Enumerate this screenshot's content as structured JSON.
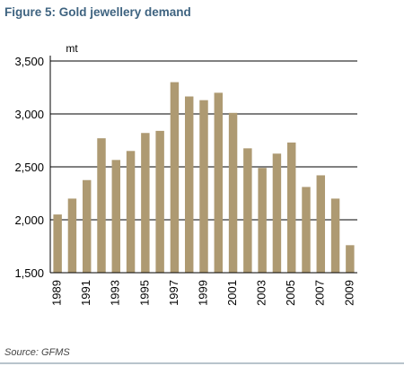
{
  "figure": {
    "title": "Figure 5: Gold jewellery demand",
    "source": "Source: GFMS"
  },
  "colors": {
    "title": "#3e6380",
    "bar": "#ae9a72",
    "grid": "#000000",
    "axis": "#000000"
  },
  "chart_data": {
    "type": "bar",
    "title": "Figure 5: Gold jewellery demand",
    "unit_label": "mt",
    "xlabel": "",
    "ylabel": "",
    "categories": [
      "1989",
      "1990",
      "1991",
      "1992",
      "1993",
      "1994",
      "1995",
      "1996",
      "1997",
      "1998",
      "1999",
      "2000",
      "2001",
      "2002",
      "2003",
      "2004",
      "2005",
      "2006",
      "2007",
      "2008",
      "2009"
    ],
    "x_tick_labels": [
      "1989",
      "1991",
      "1993",
      "1995",
      "1997",
      "1999",
      "2001",
      "2003",
      "2005",
      "2007",
      "2009"
    ],
    "values": [
      2050,
      2200,
      2375,
      2770,
      2565,
      2650,
      2820,
      2840,
      3300,
      3165,
      3130,
      3200,
      3010,
      2675,
      2490,
      2625,
      2730,
      2310,
      2420,
      2200,
      1760
    ],
    "y_tick_labels": [
      "1,500",
      "2,000",
      "2,500",
      "3,000",
      "3,500"
    ],
    "y_ticks": [
      1500,
      2000,
      2500,
      3000,
      3500
    ],
    "ylim": [
      1500,
      3500
    ],
    "grid": true,
    "legend": "none"
  }
}
